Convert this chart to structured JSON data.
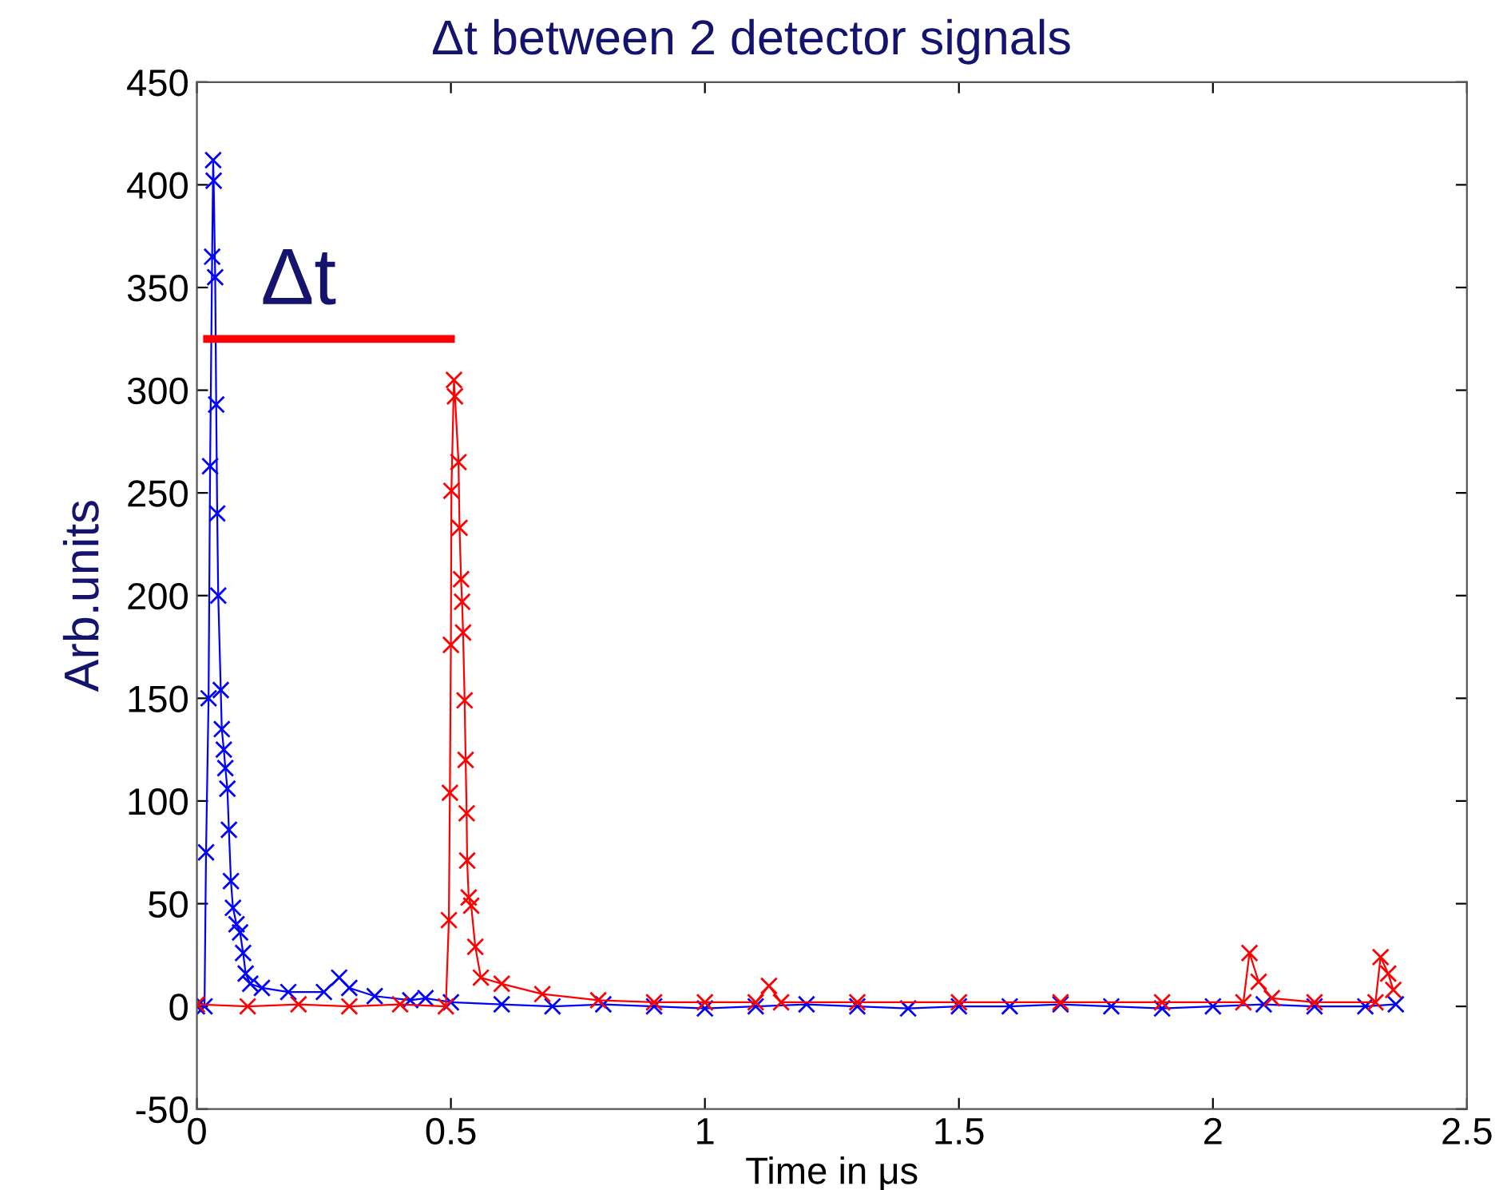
{
  "chart_data": {
    "type": "line",
    "title": "Δt between 2 detector signals",
    "xlabel": "Time in μs",
    "ylabel": "Arb.units",
    "xlim": [
      0,
      2.5
    ],
    "xticks": [
      0,
      0.5,
      1,
      1.5,
      2,
      2.5
    ],
    "ylim": [
      -50,
      450
    ],
    "yticks": [
      -50,
      0,
      50,
      100,
      150,
      200,
      250,
      300,
      350,
      400,
      450
    ],
    "grid": false,
    "marker": "cross",
    "line_style": "solid",
    "annotations": [
      "Δt"
    ],
    "series": [
      {
        "color": "#0000ff",
        "x": [
          0,
          0.015,
          0.018,
          0.023,
          0.026,
          0.03,
          0.032,
          0.033,
          0.036,
          0.038,
          0.04,
          0.042,
          0.047,
          0.049,
          0.053,
          0.056,
          0.06,
          0.063,
          0.067,
          0.071,
          0.078,
          0.085,
          0.091,
          0.096,
          0.105,
          0.128,
          0.18,
          0.25,
          0.28,
          0.3,
          0.35,
          0.42,
          0.45,
          0.5,
          0.6,
          0.7,
          0.8,
          0.9,
          1.0,
          1.1,
          1.2,
          1.3,
          1.4,
          1.5,
          1.6,
          1.7,
          1.8,
          1.9,
          2.0,
          2.1,
          2.2,
          2.3,
          2.36
        ],
        "values": [
          0,
          0,
          75,
          150,
          263,
          365,
          412,
          402,
          355,
          293,
          240,
          200,
          154,
          135,
          125,
          116,
          106,
          86,
          61,
          48,
          40,
          36,
          26,
          16,
          11,
          9,
          7,
          7,
          14,
          9,
          5,
          3,
          4,
          2,
          1,
          0,
          1,
          0,
          -1,
          0,
          1,
          0,
          -1,
          0,
          0,
          1,
          0,
          -1,
          0,
          1,
          0,
          0,
          1
        ]
      },
      {
        "color": "#ff0000",
        "x": [
          0,
          0.1,
          0.2,
          0.3,
          0.4,
          0.49,
          0.496,
          0.498,
          0.5,
          0.501,
          0.506,
          0.508,
          0.515,
          0.517,
          0.52,
          0.522,
          0.524,
          0.527,
          0.529,
          0.531,
          0.532,
          0.535,
          0.54,
          0.548,
          0.559,
          0.6,
          0.68,
          0.79,
          0.9,
          1.0,
          1.1,
          1.126,
          1.15,
          1.3,
          1.5,
          1.7,
          1.9,
          2.06,
          2.072,
          2.09,
          2.116,
          2.2,
          2.32,
          2.33,
          2.345,
          2.355
        ],
        "values": [
          1,
          0,
          1,
          0,
          1,
          0,
          42,
          104,
          176,
          251,
          305,
          297,
          265,
          233,
          208,
          197,
          182,
          149,
          120,
          94,
          71,
          53,
          49,
          29,
          14,
          11,
          6,
          3,
          2,
          2,
          2,
          10,
          2,
          2,
          2,
          2,
          2,
          2,
          26,
          12,
          4,
          2,
          2,
          24,
          16,
          8
        ]
      },
      {
        "color": "#ff0000",
        "marker": "none",
        "x": [
          0.02,
          0.5
        ],
        "values": [
          325,
          325
        ]
      }
    ]
  }
}
